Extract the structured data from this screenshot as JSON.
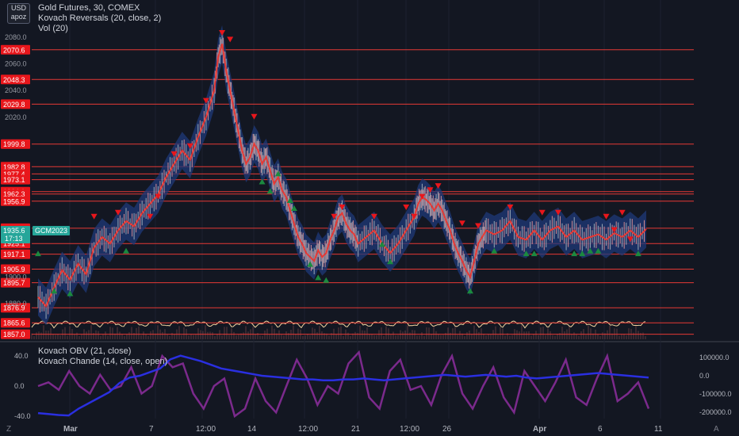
{
  "top_left": {
    "currency": "USD",
    "account": "apoz"
  },
  "legend_main": [
    "Gold Futures, 30, COMEX",
    "Kovach Reversals (20, close, 2)",
    "Vol (20)"
  ],
  "legend_sub": [
    "Kovach OBV (21, close)",
    "Kovach Chande (14, close, open)"
  ],
  "chart_data": [
    {
      "type": "candlestick",
      "title": "Gold Futures, 30, COMEX",
      "y_left_ticks": [
        "2080.0",
        "2060.0",
        "2040.0",
        "2020.0",
        "1900.0",
        "1880.0"
      ],
      "ylim": [
        1852,
        2088
      ],
      "x_ticks": [
        "Mar",
        "7",
        "12:00",
        "14",
        "12:00",
        "21",
        "12:00",
        "26",
        "Apr",
        "6",
        "11"
      ],
      "price_level_lines": [
        "2070.6",
        "2048.3",
        "2029.8",
        "1999.8",
        "1982.8",
        "1977.4",
        "1973.1",
        "1964.1",
        "1962.3",
        "1956.9",
        "1936.6",
        "1925.1",
        "1917.1",
        "1905.9",
        "1895.7",
        "1876.9",
        "1865.6",
        "1857.0"
      ],
      "last_price_label": "1935.6",
      "last_price_time": "17:13",
      "symbol_badge": "GCM2023",
      "price_path": [
        [
          0,
          1885
        ],
        [
          2,
          1878
        ],
        [
          4,
          1892
        ],
        [
          6,
          1905
        ],
        [
          8,
          1898
        ],
        [
          10,
          1910
        ],
        [
          12,
          1902
        ],
        [
          14,
          1922
        ],
        [
          16,
          1930
        ],
        [
          18,
          1925
        ],
        [
          20,
          1935
        ],
        [
          22,
          1942
        ],
        [
          24,
          1938
        ],
        [
          26,
          1948
        ],
        [
          28,
          1955
        ],
        [
          30,
          1962
        ],
        [
          32,
          1975
        ],
        [
          34,
          1985
        ],
        [
          36,
          1995
        ],
        [
          38,
          1988
        ],
        [
          40,
          2005
        ],
        [
          42,
          2020
        ],
        [
          44,
          2040
        ],
        [
          45,
          2065
        ],
        [
          46,
          2075
        ],
        [
          47,
          2055
        ],
        [
          48,
          2040
        ],
        [
          49,
          2025
        ],
        [
          50,
          2010
        ],
        [
          51,
          1995
        ],
        [
          52,
          1985
        ],
        [
          53,
          1990
        ],
        [
          54,
          2000
        ],
        [
          55,
          1995
        ],
        [
          56,
          1985
        ],
        [
          57,
          1990
        ],
        [
          58,
          1980
        ],
        [
          59,
          1970
        ],
        [
          60,
          1975
        ],
        [
          61,
          1965
        ],
        [
          62,
          1960
        ],
        [
          63,
          1950
        ],
        [
          64,
          1940
        ],
        [
          65,
          1930
        ],
        [
          66,
          1925
        ],
        [
          67,
          1918
        ],
        [
          68,
          1915
        ],
        [
          69,
          1912
        ],
        [
          70,
          1920
        ],
        [
          71,
          1915
        ],
        [
          72,
          1918
        ],
        [
          73,
          1928
        ],
        [
          74,
          1935
        ],
        [
          75,
          1945
        ],
        [
          76,
          1948
        ],
        [
          77,
          1940
        ],
        [
          78,
          1935
        ],
        [
          79,
          1932
        ],
        [
          80,
          1925
        ],
        [
          82,
          1930
        ],
        [
          84,
          1935
        ],
        [
          86,
          1925
        ],
        [
          88,
          1918
        ],
        [
          90,
          1925
        ],
        [
          92,
          1935
        ],
        [
          94,
          1945
        ],
        [
          95,
          1955
        ],
        [
          96,
          1960
        ],
        [
          97,
          1958
        ],
        [
          98,
          1955
        ],
        [
          99,
          1950
        ],
        [
          100,
          1955
        ],
        [
          101,
          1950
        ],
        [
          102,
          1942
        ],
        [
          103,
          1935
        ],
        [
          104,
          1925
        ],
        [
          105,
          1918
        ],
        [
          106,
          1912
        ],
        [
          107,
          1905
        ],
        [
          108,
          1900
        ],
        [
          109,
          1912
        ],
        [
          110,
          1925
        ],
        [
          111,
          1930
        ],
        [
          112,
          1935
        ],
        [
          114,
          1932
        ],
        [
          116,
          1935
        ],
        [
          118,
          1942
        ],
        [
          120,
          1930
        ],
        [
          122,
          1928
        ],
        [
          124,
          1935
        ],
        [
          126,
          1928
        ],
        [
          128,
          1935
        ],
        [
          130,
          1938
        ],
        [
          132,
          1930
        ],
        [
          134,
          1935
        ],
        [
          136,
          1928
        ],
        [
          138,
          1930
        ],
        [
          140,
          1932
        ],
        [
          142,
          1928
        ],
        [
          144,
          1933
        ],
        [
          146,
          1930
        ],
        [
          148,
          1935
        ],
        [
          150,
          1930
        ],
        [
          152,
          1936
        ]
      ],
      "markers": [
        {
          "x": 0,
          "y": 1918,
          "dir": "up"
        },
        {
          "x": 4,
          "y": 1890,
          "dir": "up"
        },
        {
          "x": 8,
          "y": 1888,
          "dir": "up"
        },
        {
          "x": 14,
          "y": 1945,
          "dir": "down"
        },
        {
          "x": 20,
          "y": 1948,
          "dir": "down"
        },
        {
          "x": 22,
          "y": 1920,
          "dir": "up"
        },
        {
          "x": 28,
          "y": 1945,
          "dir": "down"
        },
        {
          "x": 30,
          "y": 1960,
          "dir": "down"
        },
        {
          "x": 34,
          "y": 1992,
          "dir": "down"
        },
        {
          "x": 38,
          "y": 1998,
          "dir": "down"
        },
        {
          "x": 42,
          "y": 2032,
          "dir": "down"
        },
        {
          "x": 46,
          "y": 2083,
          "dir": "down"
        },
        {
          "x": 48,
          "y": 2078,
          "dir": "down"
        },
        {
          "x": 54,
          "y": 2020,
          "dir": "down"
        },
        {
          "x": 56,
          "y": 1972,
          "dir": "up"
        },
        {
          "x": 58,
          "y": 1965,
          "dir": "up"
        },
        {
          "x": 60,
          "y": 1978,
          "dir": "up"
        },
        {
          "x": 63,
          "y": 1958,
          "dir": "up"
        },
        {
          "x": 64,
          "y": 1952,
          "dir": "up"
        },
        {
          "x": 68,
          "y": 1910,
          "dir": "up"
        },
        {
          "x": 70,
          "y": 1900,
          "dir": "up"
        },
        {
          "x": 72,
          "y": 1898,
          "dir": "up"
        },
        {
          "x": 74,
          "y": 1945,
          "dir": "down"
        },
        {
          "x": 76,
          "y": 1952,
          "dir": "down"
        },
        {
          "x": 84,
          "y": 1945,
          "dir": "down"
        },
        {
          "x": 86,
          "y": 1925,
          "dir": "up"
        },
        {
          "x": 88,
          "y": 1912,
          "dir": "up"
        },
        {
          "x": 92,
          "y": 1952,
          "dir": "down"
        },
        {
          "x": 94,
          "y": 1945,
          "dir": "down"
        },
        {
          "x": 96,
          "y": 1960,
          "dir": "down"
        },
        {
          "x": 98,
          "y": 1965,
          "dir": "down"
        },
        {
          "x": 100,
          "y": 1968,
          "dir": "down"
        },
        {
          "x": 106,
          "y": 1940,
          "dir": "down"
        },
        {
          "x": 108,
          "y": 1890,
          "dir": "up"
        },
        {
          "x": 110,
          "y": 1938,
          "dir": "down"
        },
        {
          "x": 114,
          "y": 1920,
          "dir": "up"
        },
        {
          "x": 118,
          "y": 1952,
          "dir": "down"
        },
        {
          "x": 122,
          "y": 1918,
          "dir": "up"
        },
        {
          "x": 124,
          "y": 1918,
          "dir": "up"
        },
        {
          "x": 126,
          "y": 1948,
          "dir": "down"
        },
        {
          "x": 130,
          "y": 1948,
          "dir": "down"
        },
        {
          "x": 134,
          "y": 1918,
          "dir": "up"
        },
        {
          "x": 136,
          "y": 1918,
          "dir": "up"
        },
        {
          "x": 138,
          "y": 1920,
          "dir": "up"
        },
        {
          "x": 140,
          "y": 1920,
          "dir": "up"
        },
        {
          "x": 142,
          "y": 1945,
          "dir": "down"
        },
        {
          "x": 144,
          "y": 1935,
          "dir": "down"
        },
        {
          "x": 146,
          "y": 1948,
          "dir": "down"
        },
        {
          "x": 148,
          "y": 1928,
          "dir": "down"
        },
        {
          "x": 150,
          "y": 1918,
          "dir": "up"
        }
      ]
    },
    {
      "type": "line",
      "title": "Kovach OBV (21, close) / Kovach Chande (14, close, open)",
      "y_left_ticks": [
        "40.0",
        "0.0",
        "-40.0"
      ],
      "y_right_ticks": [
        "100000.0",
        "0.0",
        "-100000.0",
        "-200000.0"
      ],
      "series": [
        {
          "name": "Kovach OBV",
          "color": "#2a2fe0",
          "axis": "right",
          "values": [
            -205000,
            -210000,
            -215000,
            -218000,
            -180000,
            -150000,
            -120000,
            -90000,
            -40000,
            -10000,
            0,
            20000,
            40000,
            90000,
            110000,
            95000,
            80000,
            60000,
            40000,
            30000,
            20000,
            10000,
            0,
            -5000,
            -10000,
            -15000,
            -20000,
            -20000,
            -25000,
            -25000,
            -20000,
            -20000,
            -15000,
            -20000,
            -25000,
            -20000,
            -15000,
            -10000,
            -5000,
            0,
            5000,
            0,
            -5000,
            0,
            5000,
            0,
            -5000,
            0,
            -10000,
            -15000,
            -10000,
            -5000,
            0,
            5000,
            10000,
            15000,
            10000,
            5000,
            0,
            -5000,
            -10000
          ]
        },
        {
          "name": "Kovach Chande",
          "color": "#7b2a8c",
          "axis": "left",
          "values": [
            0,
            5,
            -5,
            20,
            0,
            -10,
            15,
            -5,
            0,
            25,
            -10,
            0,
            40,
            25,
            30,
            -10,
            -30,
            0,
            10,
            -40,
            -30,
            10,
            -20,
            -35,
            0,
            35,
            10,
            -25,
            0,
            -10,
            30,
            45,
            -15,
            -30,
            20,
            35,
            -5,
            0,
            -25,
            15,
            40,
            -10,
            -30,
            0,
            25,
            -15,
            -35,
            20,
            0,
            -20,
            5,
            35,
            -15,
            -25,
            10,
            40,
            -20,
            -10,
            5,
            -30
          ]
        }
      ]
    }
  ],
  "axis_corners": {
    "bottom_left": "Z",
    "bottom_right": "A"
  }
}
